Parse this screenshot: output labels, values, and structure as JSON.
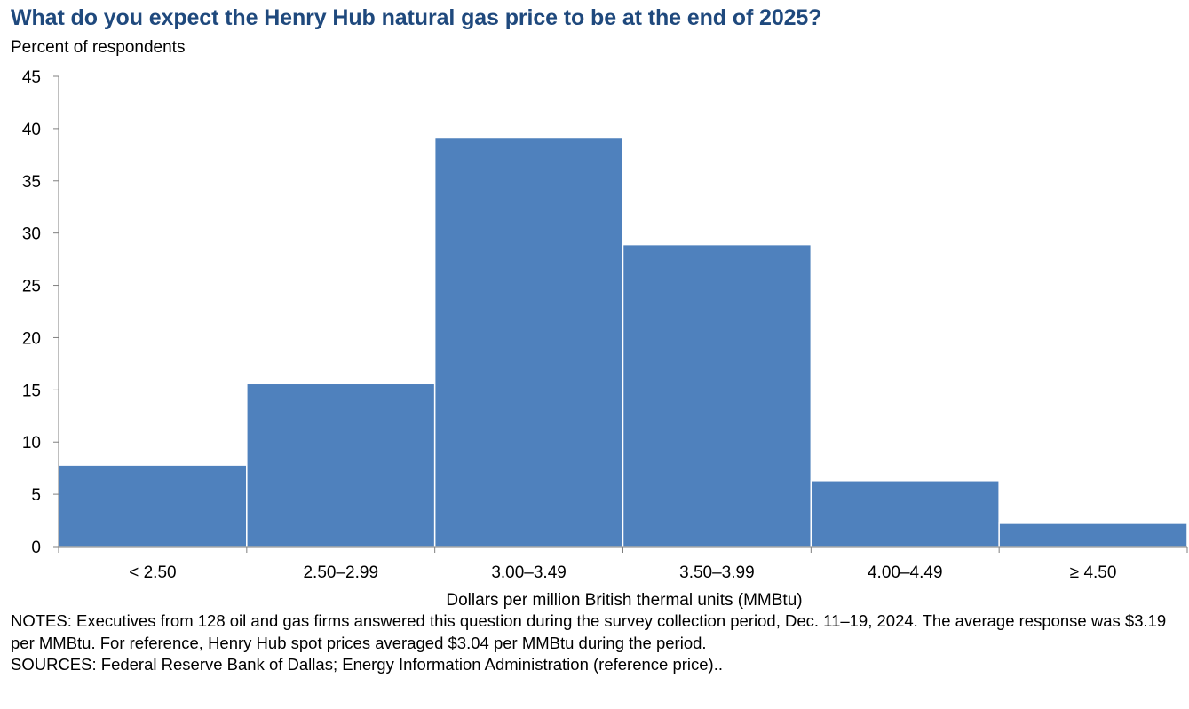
{
  "chart_data": {
    "type": "bar",
    "title": "What do you expect the Henry Hub natural gas price to be at the end of 2025?",
    "ylabel": "Percent of respondents",
    "xlabel": "Dollars per million British thermal units (MMBtu)",
    "categories": [
      "< 2.50",
      "2.50–2.99",
      "3.00–3.49",
      "3.50–3.99",
      "4.00–4.49",
      "≥ 4.50"
    ],
    "values": [
      7.8,
      15.6,
      39.1,
      28.9,
      6.3,
      2.3
    ],
    "ylim": [
      0,
      45
    ],
    "yticks": [
      0,
      5,
      10,
      15,
      20,
      25,
      30,
      35,
      40,
      45
    ],
    "bar_color": "#4f81bd",
    "grid": false,
    "legend": "none"
  },
  "notes": {
    "line1": "NOTES: Executives from 128 oil and gas firms answered this question during the survey collection period, Dec. 11–19, 2024. The average response was $3.19 per MMBtu. For reference, Henry Hub spot prices averaged $3.04 per MMBtu during the period.",
    "line2": "SOURCES: Federal Reserve Bank of Dallas; Energy Information Administration (reference price).."
  }
}
